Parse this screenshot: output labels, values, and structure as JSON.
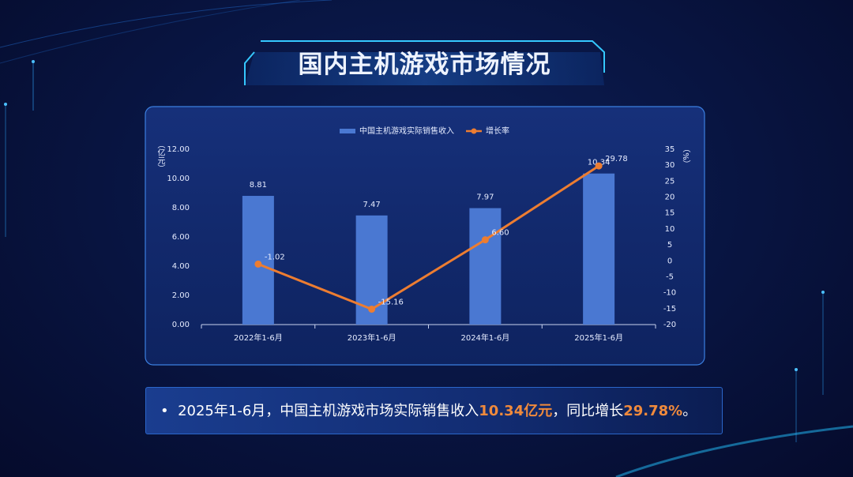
{
  "title": "国内主机游戏市场情况",
  "summary": {
    "parts": [
      "2025年1-6月，中国主机游戏市场实际销售收入",
      "10.34亿元",
      "，同比增长",
      "29.78%",
      "。"
    ]
  },
  "chart_data": {
    "type": "bar-line",
    "ylabel": "（亿元）",
    "y2label": "（%）",
    "categories": [
      "2022年1-6月",
      "2023年1-6月",
      "2024年1-6月",
      "2025年1-6月"
    ],
    "series": [
      {
        "name": "中国主机游戏实际销售收入",
        "type": "bar",
        "color": "#4a78d2",
        "values": [
          8.81,
          7.47,
          7.97,
          10.34
        ]
      },
      {
        "name": "增长率",
        "type": "line",
        "axis": "y2",
        "color": "#ed7d31",
        "values": [
          -1.02,
          -15.16,
          6.6,
          29.78
        ],
        "value_labels": [
          "-1.02",
          "-15.16",
          "6.60",
          "29.78"
        ]
      }
    ],
    "ylim": [
      0,
      12
    ],
    "yticks": [
      {
        "value": 0,
        "label": "0.00"
      },
      {
        "value": 2,
        "label": "2.00"
      },
      {
        "value": 4,
        "label": "4.00"
      },
      {
        "value": 6,
        "label": "6.00"
      },
      {
        "value": 8,
        "label": "8.00"
      },
      {
        "value": 10,
        "label": "10.00"
      },
      {
        "value": 12,
        "label": "12.00"
      }
    ],
    "y2lim": [
      -20,
      35
    ],
    "y2ticks": [
      -20,
      -15,
      -10,
      -5,
      0,
      5,
      10,
      15,
      20,
      25,
      30,
      35
    ],
    "legend": "top",
    "grid": false
  }
}
